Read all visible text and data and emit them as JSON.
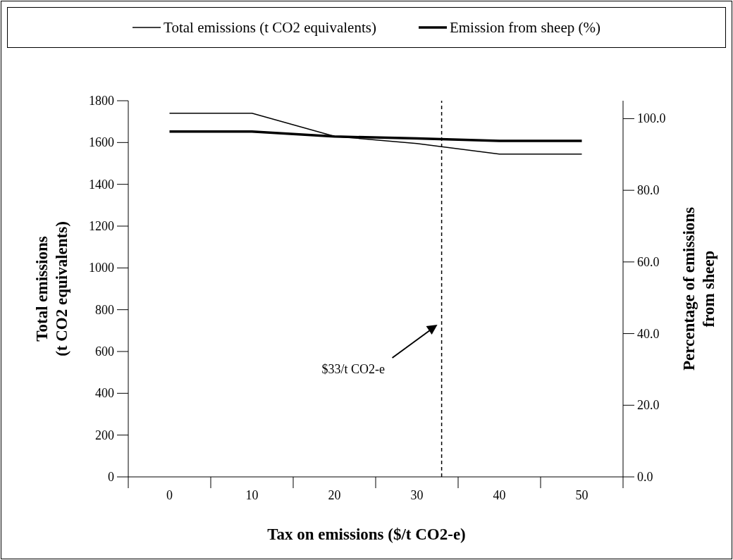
{
  "chart_data": {
    "type": "line",
    "xlabel": "Tax on emissions ($/t CO2-e)",
    "ylabel": "Total emissions\n(t CO2 equivalents)",
    "y2label": "Percentage of emissions\nfrom sheep",
    "x": [
      0,
      10,
      20,
      30,
      40,
      50
    ],
    "series": [
      {
        "name": "Total emissions (t CO2 equivalents)",
        "color": "#000000",
        "values": [
          1740,
          1740,
          1630,
          1595,
          1545,
          1545
        ]
      },
      {
        "name": "Emission from sheep (%)",
        "color": "#000000",
        "values": [
          96.4,
          96.4,
          95.0,
          94.5,
          93.8,
          93.8
        ],
        "axis": "y2"
      }
    ],
    "xlim": [
      -5,
      55
    ],
    "xticks": [
      {
        "value": -5,
        "label": null
      },
      0,
      {
        "value": 5,
        "label": null
      },
      10,
      {
        "value": 15,
        "label": null
      },
      20,
      {
        "value": 25,
        "label": null
      },
      30,
      {
        "value": 35,
        "label": null
      },
      40,
      {
        "value": 45,
        "label": null
      },
      50,
      {
        "value": 55,
        "label": null
      }
    ],
    "ylim": [
      0,
      1800
    ],
    "yticks": [
      0,
      200,
      400,
      600,
      800,
      1000,
      1200,
      1400,
      1600,
      1800
    ],
    "y2lim": [
      0,
      105
    ],
    "y2ticks": [
      {
        "value": 0,
        "label": "0.0"
      },
      {
        "value": 20,
        "label": "20.0"
      },
      {
        "value": 40,
        "label": "40.0"
      },
      {
        "value": 60,
        "label": "60.0"
      },
      {
        "value": 80,
        "label": "80.0"
      },
      {
        "value": 100,
        "label": "100.0"
      }
    ],
    "ref_lines": [
      {
        "axis": "x",
        "value": 33,
        "line_style": "dashed",
        "color": "#000000"
      }
    ],
    "annotations": [
      "$33/t CO2-e"
    ],
    "legend": "top",
    "marker": "none",
    "line_style": "solid"
  }
}
